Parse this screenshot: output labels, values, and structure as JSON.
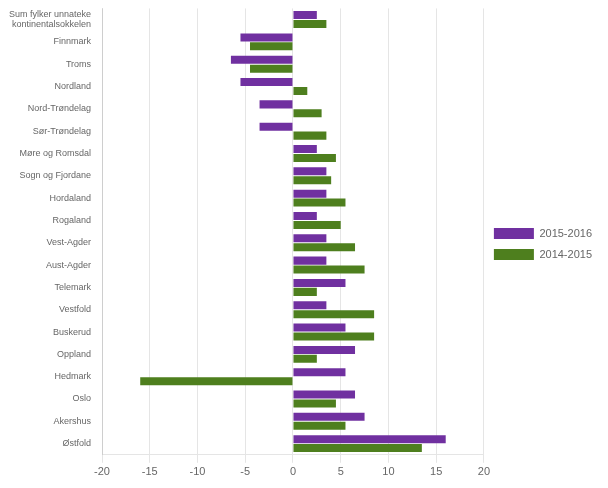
{
  "chart_data": {
    "type": "bar",
    "orientation": "horizontal",
    "categories": [
      "Sum fylker unnateke\nkontinentalsokkelen",
      "Finnmark",
      "Troms",
      "Nordland",
      "Nord-Trøndelag",
      "Sør-Trøndelag",
      "Møre og Romsdal",
      "Sogn og Fjordane",
      "Hordaland",
      "Rogaland",
      "Vest-Agder",
      "Aust-Agder",
      "Telemark",
      "Vestfold",
      "Buskerud",
      "Oppland",
      "Hedmark",
      "Oslo",
      "Akershus",
      "Østfold"
    ],
    "series": [
      {
        "name": "2015-2016",
        "color": "#7030a0",
        "values": [
          2.5,
          -5.5,
          -6.5,
          -5.5,
          -3.5,
          -3.5,
          2.5,
          3.5,
          3.5,
          2.5,
          3.5,
          3.5,
          5.5,
          3.5,
          5.5,
          6.5,
          5.5,
          6.5,
          7.5,
          16.0
        ]
      },
      {
        "name": "2014-2015",
        "color": "#4e7f1e",
        "values": [
          3.5,
          -4.5,
          -4.5,
          1.5,
          3.0,
          3.5,
          4.5,
          4.0,
          5.5,
          5.0,
          6.5,
          7.5,
          2.5,
          8.5,
          8.5,
          2.5,
          -16.0,
          4.5,
          5.5,
          13.5
        ]
      }
    ],
    "xlim": [
      -20,
      20
    ],
    "xticks": [
      -20,
      -15,
      -10,
      -5,
      0,
      5,
      10,
      15,
      20
    ],
    "grid": "x",
    "legend": "right"
  }
}
